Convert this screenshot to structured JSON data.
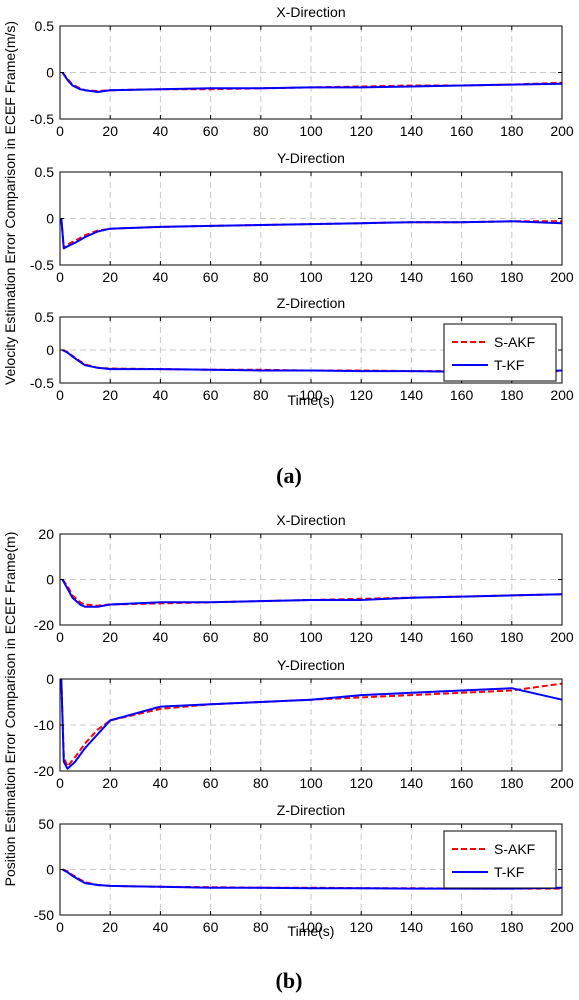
{
  "chart_data": [
    {
      "type": "line",
      "figure_label": "(a)",
      "ylabel": "Velocity Estimation Error Comparison in ECEF Frame(m/s)",
      "xlabel": "Time(s)",
      "legend": {
        "entries": [
          "S-AKF",
          "T-KF"
        ],
        "placement": "right (in Z-Direction panel)"
      },
      "series_colors": {
        "S-AKF": "#ff0000",
        "T-KF": "#0000ff"
      },
      "series_styles": {
        "S-AKF": "dashed",
        "T-KF": "solid"
      },
      "subplots": [
        {
          "title": "X-Direction",
          "ylim": [
            -0.5,
            0.5
          ],
          "yticks": [
            -0.5,
            0,
            0.5
          ],
          "xlim": [
            0,
            200
          ],
          "xticks": [
            0,
            20,
            40,
            60,
            80,
            100,
            120,
            140,
            160,
            180,
            200
          ],
          "grid": true,
          "x": [
            1,
            3,
            5,
            8,
            10,
            15,
            20,
            40,
            60,
            80,
            100,
            120,
            140,
            160,
            180,
            200
          ],
          "series": [
            {
              "name": "S-AKF",
              "values": [
                0,
                -0.07,
                -0.13,
                -0.17,
                -0.19,
                -0.2,
                -0.19,
                -0.18,
                -0.18,
                -0.17,
                -0.16,
                -0.15,
                -0.14,
                -0.14,
                -0.13,
                -0.11
              ]
            },
            {
              "name": "T-KF",
              "values": [
                0,
                -0.08,
                -0.14,
                -0.18,
                -0.19,
                -0.21,
                -0.19,
                -0.18,
                -0.17,
                -0.17,
                -0.16,
                -0.16,
                -0.15,
                -0.14,
                -0.13,
                -0.12
              ]
            }
          ]
        },
        {
          "title": "Y-Direction",
          "ylim": [
            -0.5,
            0.5
          ],
          "yticks": [
            -0.5,
            0,
            0.5
          ],
          "xlim": [
            0,
            200
          ],
          "xticks": [
            0,
            20,
            40,
            60,
            80,
            100,
            120,
            140,
            160,
            180,
            200
          ],
          "grid": true,
          "x": [
            0.5,
            1.5,
            3,
            6,
            10,
            15,
            20,
            40,
            60,
            80,
            100,
            120,
            140,
            160,
            180,
            200
          ],
          "series": [
            {
              "name": "S-AKF",
              "values": [
                0,
                -0.32,
                -0.28,
                -0.24,
                -0.18,
                -0.13,
                -0.11,
                -0.09,
                -0.08,
                -0.07,
                -0.06,
                -0.05,
                -0.04,
                -0.04,
                -0.03,
                -0.03
              ]
            },
            {
              "name": "T-KF",
              "values": [
                0,
                -0.32,
                -0.3,
                -0.26,
                -0.2,
                -0.14,
                -0.11,
                -0.09,
                -0.08,
                -0.07,
                -0.06,
                -0.05,
                -0.04,
                -0.04,
                -0.03,
                -0.05
              ]
            }
          ]
        },
        {
          "title": "Z-Direction",
          "ylim": [
            -0.5,
            0.5
          ],
          "yticks": [
            -0.5,
            0,
            0.5
          ],
          "xlim": [
            0,
            200
          ],
          "xticks": [
            0,
            20,
            40,
            60,
            80,
            100,
            120,
            140,
            160,
            180,
            200
          ],
          "grid": true,
          "x": [
            1,
            3,
            5,
            8,
            10,
            15,
            20,
            40,
            60,
            80,
            100,
            120,
            140,
            160,
            180,
            200
          ],
          "series": [
            {
              "name": "S-AKF",
              "values": [
                0,
                -0.03,
                -0.09,
                -0.17,
                -0.22,
                -0.27,
                -0.28,
                -0.29,
                -0.3,
                -0.3,
                -0.31,
                -0.31,
                -0.32,
                -0.32,
                -0.33,
                -0.32
              ]
            },
            {
              "name": "T-KF",
              "values": [
                0,
                -0.04,
                -0.1,
                -0.18,
                -0.23,
                -0.27,
                -0.29,
                -0.29,
                -0.3,
                -0.31,
                -0.31,
                -0.32,
                -0.32,
                -0.33,
                -0.33,
                -0.31
              ]
            }
          ]
        }
      ]
    },
    {
      "type": "line",
      "figure_label": "(b)",
      "ylabel": "Position Estimation Error Comparison in ECEF Frame(m)",
      "xlabel": "Time(s)",
      "legend": {
        "entries": [
          "S-AKF",
          "T-KF"
        ],
        "placement": "right (in Z-Direction panel)"
      },
      "series_colors": {
        "S-AKF": "#ff0000",
        "T-KF": "#0000ff"
      },
      "series_styles": {
        "S-AKF": "dashed",
        "T-KF": "solid"
      },
      "subplots": [
        {
          "title": "X-Direction",
          "ylim": [
            -20,
            20
          ],
          "yticks": [
            -20,
            0,
            20
          ],
          "xlim": [
            0,
            200
          ],
          "xticks": [
            0,
            20,
            40,
            60,
            80,
            100,
            120,
            140,
            160,
            180,
            200
          ],
          "grid": true,
          "x": [
            1,
            3,
            5,
            8,
            10,
            15,
            20,
            40,
            60,
            80,
            100,
            120,
            140,
            160,
            180,
            200
          ],
          "series": [
            {
              "name": "S-AKF",
              "values": [
                0,
                -3,
                -7,
                -10,
                -11,
                -11.5,
                -11,
                -10.5,
                -10,
                -9.5,
                -9,
                -8.5,
                -8,
                -7.5,
                -7,
                -6.5
              ]
            },
            {
              "name": "T-KF",
              "values": [
                0,
                -4,
                -8,
                -11,
                -12,
                -12,
                -11,
                -10,
                -10,
                -9.5,
                -9,
                -9,
                -8,
                -7.5,
                -7,
                -6.5
              ]
            }
          ]
        },
        {
          "title": "Y-Direction",
          "ylim": [
            -20,
            0
          ],
          "yticks": [
            -20,
            -10,
            0
          ],
          "xlim": [
            0,
            200
          ],
          "xticks": [
            0,
            20,
            40,
            60,
            80,
            100,
            120,
            140,
            160,
            180,
            200
          ],
          "grid": true,
          "x": [
            0.5,
            1.5,
            3,
            6,
            10,
            15,
            20,
            40,
            60,
            80,
            100,
            120,
            140,
            160,
            180,
            200
          ],
          "series": [
            {
              "name": "S-AKF",
              "values": [
                0,
                -17,
                -19,
                -17,
                -14,
                -11,
                -9,
                -6.5,
                -5.5,
                -5,
                -4.5,
                -4,
                -3.5,
                -3,
                -2.5,
                -1
              ]
            },
            {
              "name": "T-KF",
              "values": [
                0,
                -18,
                -19.5,
                -18,
                -15,
                -12,
                -9,
                -6,
                -5.5,
                -5,
                -4.5,
                -3.5,
                -3,
                -2.5,
                -2,
                -4.5
              ]
            }
          ]
        },
        {
          "title": "Z-Direction",
          "ylim": [
            -50,
            50
          ],
          "yticks": [
            -50,
            0,
            50
          ],
          "xlim": [
            0,
            200
          ],
          "xticks": [
            0,
            20,
            40,
            60,
            80,
            100,
            120,
            140,
            160,
            180,
            200
          ],
          "grid": true,
          "x": [
            1,
            3,
            5,
            8,
            10,
            15,
            20,
            40,
            60,
            80,
            100,
            120,
            140,
            160,
            180,
            200
          ],
          "series": [
            {
              "name": "S-AKF",
              "values": [
                0,
                -2,
                -6,
                -11,
                -14,
                -17,
                -18,
                -19,
                -19.5,
                -20,
                -20,
                -20.5,
                -20.5,
                -21,
                -21,
                -21
              ]
            },
            {
              "name": "T-KF",
              "values": [
                0,
                -3,
                -7,
                -12,
                -15,
                -17,
                -18,
                -19,
                -20,
                -20,
                -20.5,
                -20.5,
                -21,
                -21,
                -21,
                -20
              ]
            }
          ]
        }
      ]
    }
  ]
}
